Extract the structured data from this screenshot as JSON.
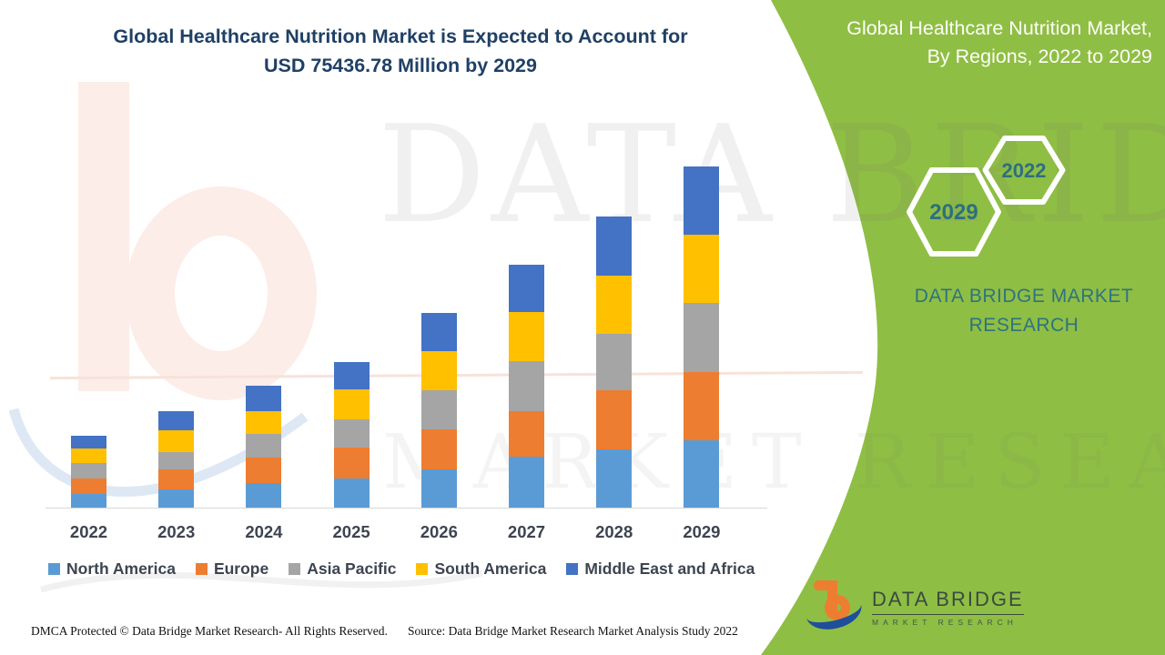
{
  "title": {
    "line1": "Global Healthcare Nutrition Market is Expected to Account for",
    "line2": "USD 75436.78 Million by 2029"
  },
  "side_panel": {
    "heading_line1": "Global Healthcare Nutrition Market,",
    "heading_line2": "By Regions, 2022 to 2029",
    "hexagon_large_label": "2029",
    "hexagon_small_label": "2022",
    "brand_line1": "DATA BRIDGE MARKET",
    "brand_line2": "RESEARCH"
  },
  "logo": {
    "title": "DATA BRIDGE",
    "subtitle": "MARKET RESEARCH"
  },
  "watermark": {
    "line1": "DATA BRIDGE",
    "line2": "MARKET RESEARCH"
  },
  "footer": {
    "dmca": "DMCA Protected © Data Bridge Market Research- All Rights Reserved.",
    "source": "Source: Data Bridge Market Research Market Analysis Study 2022"
  },
  "colors": {
    "panel_green": "#8FBE44",
    "accent_teal": "#2D6F80",
    "title_navy": "#1F4066"
  },
  "chart_data": {
    "type": "bar",
    "stacked": true,
    "title": "Global Healthcare Nutrition Market is Expected to Account for USD 75436.78 Million by 2029",
    "xlabel": "",
    "ylabel": "",
    "units": "USD Million",
    "value_note": "No y-axis shown in figure; segment values estimated from bar heights with 2029 total anchored to USD 75436.78 Million",
    "grid": false,
    "y_axis_visible": false,
    "legend_position": "bottom",
    "categories": [
      "2022",
      "2023",
      "2024",
      "2025",
      "2026",
      "2027",
      "2028",
      "2029"
    ],
    "series": [
      {
        "name": "North America",
        "color": "#5B9BD5",
        "values": [
          3017,
          4023,
          5431,
          6437,
          8449,
          11265,
          12875,
          14886
        ]
      },
      {
        "name": "Europe",
        "color": "#ED7D31",
        "values": [
          3420,
          4426,
          5633,
          6840,
          8851,
          10058,
          13076,
          15087
        ]
      },
      {
        "name": "Asia Pacific",
        "color": "#A5A5A5",
        "values": [
          3420,
          3822,
          5230,
          6236,
          8650,
          11064,
          12472,
          15289
        ]
      },
      {
        "name": "South America",
        "color": "#FFC000",
        "values": [
          3219,
          4828,
          5029,
          6638,
          8650,
          10863,
          12875,
          15087
        ]
      },
      {
        "name": "Middle East and Africa",
        "color": "#4472C4",
        "values": [
          2816,
          4224,
          5633,
          6035,
          8449,
          10461,
          13076,
          15087
        ]
      }
    ],
    "totals_estimated": [
      15892,
      21323,
      26956,
      32186,
      43049,
      53711,
      64374,
      75436
    ]
  }
}
